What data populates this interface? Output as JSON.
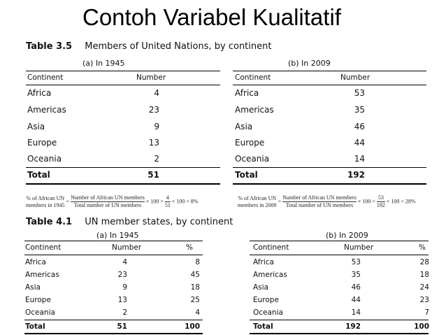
{
  "slide_title": "Contoh Variabel Kualitatif",
  "table35": {
    "label": "Table 3.5",
    "title": "Members of United Nations, by continent",
    "sub_a": "(a) In 1945",
    "sub_b": "(b) In 2009",
    "headers": [
      "Continent",
      "Number"
    ],
    "rows_a": [
      [
        "Africa",
        "4"
      ],
      [
        "Americas",
        "23"
      ],
      [
        "Asia",
        "9"
      ],
      [
        "Europe",
        "13"
      ],
      [
        "Oceania",
        "2"
      ]
    ],
    "total_a": [
      "Total",
      "51"
    ],
    "rows_b": [
      [
        "Africa",
        "53"
      ],
      [
        "Americas",
        "35"
      ],
      [
        "Asia",
        "46"
      ],
      [
        "Europe",
        "44"
      ],
      [
        "Oceania",
        "14"
      ]
    ],
    "total_b": [
      "Total",
      "192"
    ],
    "formula_a": {
      "lhs1": "% of African UN",
      "lhs2": "members in 1945",
      "num": "Number of African UN members",
      "den": "Total number of UN members",
      "mid": "× 100 =",
      "fnum": "4",
      "fden": "51",
      "end": "× 100 = 8%"
    },
    "formula_b": {
      "lhs1": "% of African UN",
      "lhs2": "members in 2009",
      "num": "Number of African UN members",
      "den": "Total number of UN members",
      "mid": "× 100 =",
      "fnum": "53",
      "fden": "192",
      "end": "× 100 = 28%"
    }
  },
  "table41": {
    "label": "Table 4.1",
    "title": "UN member states, by continent",
    "sub_a": "(a) In 1945",
    "sub_b": "(b) In 2009",
    "headers": [
      "Continent",
      "Number",
      "%"
    ],
    "rows_a": [
      [
        "Africa",
        "4",
        "8"
      ],
      [
        "Americas",
        "23",
        "45"
      ],
      [
        "Asia",
        "9",
        "18"
      ],
      [
        "Europe",
        "13",
        "25"
      ],
      [
        "Oceania",
        "2",
        "4"
      ]
    ],
    "total_a": [
      "Total",
      "51",
      "100"
    ],
    "rows_b": [
      [
        "Africa",
        "53",
        "28"
      ],
      [
        "Americas",
        "35",
        "18"
      ],
      [
        "Asia",
        "46",
        "24"
      ],
      [
        "Europe",
        "44",
        "23"
      ],
      [
        "Oceania",
        "14",
        "7"
      ]
    ],
    "total_b": [
      "Total",
      "192",
      "100"
    ]
  }
}
